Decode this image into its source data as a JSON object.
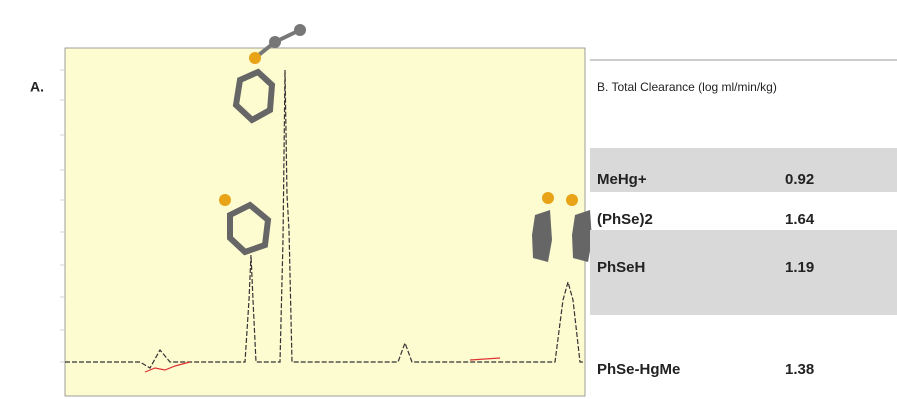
{
  "panel_a": {
    "label": "A."
  },
  "table": {
    "title": "B. Total Clearance (log ml/min/kg)",
    "rows": [
      [
        "MeHg+",
        0.92
      ],
      [
        "(PhSe)2",
        1.64
      ],
      [
        "PhSeH",
        1.19
      ],
      [
        "PhSe-HgMe",
        1.38
      ]
    ]
  }
}
